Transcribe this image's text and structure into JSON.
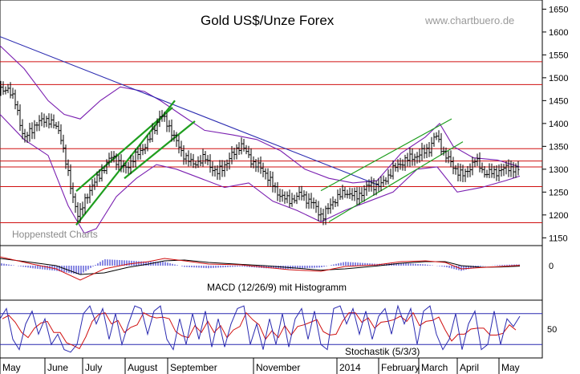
{
  "title": "Gold US$/Unze Forex",
  "watermark": "www.chartbuero.de",
  "source_label": "Hoppenstedt Charts",
  "colors": {
    "background": "#ffffff",
    "bars": "#000000",
    "bollinger": "#7a1fb0",
    "trendline": "#2a2ab0",
    "channel": "#1f9e1f",
    "horizontal": "#d01010",
    "macd_line": "#d01010",
    "signal_line": "#000000",
    "histogram": "#3a3ad0",
    "stoch_k": "#2a2ab0",
    "stoch_d": "#d01010",
    "grid": "#000000"
  },
  "chart_data": [
    {
      "type": "ohlc",
      "title": "Gold US$/Unze Forex",
      "ylim": [
        1133,
        1670
      ],
      "y_ticks": [
        "1650",
        "1600",
        "1550",
        "1500",
        "1450",
        "1400",
        "1350",
        "1300",
        "1250",
        "1200",
        "1150"
      ],
      "x_labels": [
        "May",
        "June",
        "July",
        "August",
        "September",
        "November",
        "2014",
        "February",
        "March",
        "April",
        "May"
      ],
      "horizontal_levels": [
        1535,
        1485,
        1345,
        1318,
        1305,
        1262,
        1183
      ],
      "trendline": {
        "x": [
          0,
          472
        ],
        "y": [
          1590,
          1265
        ]
      },
      "channels": [
        {
          "x": [
            95,
            215
          ],
          "y": [
            1252,
            1435
          ]
        },
        {
          "x": [
            95,
            218
          ],
          "y": [
            1178,
            1450
          ]
        },
        {
          "x": [
            155,
            243
          ],
          "y": [
            1280,
            1405
          ]
        },
        {
          "x": [
            400,
            563
          ],
          "y": [
            1253,
            1410
          ]
        },
        {
          "x": [
            410,
            577
          ],
          "y": [
            1185,
            1360
          ]
        }
      ],
      "close_series": [
        {
          "x": 0,
          "y": 1470
        },
        {
          "x": 10,
          "y": 1478
        },
        {
          "x": 20,
          "y": 1440
        },
        {
          "x": 30,
          "y": 1365
        },
        {
          "x": 45,
          "y": 1400
        },
        {
          "x": 60,
          "y": 1410
        },
        {
          "x": 75,
          "y": 1380
        },
        {
          "x": 88,
          "y": 1260
        },
        {
          "x": 98,
          "y": 1195
        },
        {
          "x": 110,
          "y": 1250
        },
        {
          "x": 125,
          "y": 1290
        },
        {
          "x": 140,
          "y": 1330
        },
        {
          "x": 155,
          "y": 1300
        },
        {
          "x": 170,
          "y": 1330
        },
        {
          "x": 185,
          "y": 1360
        },
        {
          "x": 200,
          "y": 1420
        },
        {
          "x": 212,
          "y": 1390
        },
        {
          "x": 225,
          "y": 1340
        },
        {
          "x": 240,
          "y": 1310
        },
        {
          "x": 255,
          "y": 1325
        },
        {
          "x": 270,
          "y": 1290
        },
        {
          "x": 285,
          "y": 1320
        },
        {
          "x": 300,
          "y": 1355
        },
        {
          "x": 315,
          "y": 1315
        },
        {
          "x": 330,
          "y": 1295
        },
        {
          "x": 345,
          "y": 1250
        },
        {
          "x": 360,
          "y": 1230
        },
        {
          "x": 375,
          "y": 1245
        },
        {
          "x": 390,
          "y": 1225
        },
        {
          "x": 402,
          "y": 1195
        },
        {
          "x": 415,
          "y": 1230
        },
        {
          "x": 430,
          "y": 1250
        },
        {
          "x": 445,
          "y": 1240
        },
        {
          "x": 460,
          "y": 1265
        },
        {
          "x": 475,
          "y": 1265
        },
        {
          "x": 490,
          "y": 1300
        },
        {
          "x": 505,
          "y": 1320
        },
        {
          "x": 520,
          "y": 1330
        },
        {
          "x": 535,
          "y": 1345
        },
        {
          "x": 543,
          "y": 1375
        },
        {
          "x": 552,
          "y": 1340
        },
        {
          "x": 565,
          "y": 1305
        },
        {
          "x": 578,
          "y": 1285
        },
        {
          "x": 592,
          "y": 1320
        },
        {
          "x": 605,
          "y": 1290
        },
        {
          "x": 620,
          "y": 1295
        },
        {
          "x": 635,
          "y": 1305
        },
        {
          "x": 648,
          "y": 1295
        }
      ],
      "bollinger_upper": [
        {
          "x": 0,
          "y": 1570
        },
        {
          "x": 30,
          "y": 1520
        },
        {
          "x": 60,
          "y": 1450
        },
        {
          "x": 80,
          "y": 1420
        },
        {
          "x": 100,
          "y": 1410
        },
        {
          "x": 125,
          "y": 1450
        },
        {
          "x": 150,
          "y": 1480
        },
        {
          "x": 180,
          "y": 1470
        },
        {
          "x": 200,
          "y": 1450
        },
        {
          "x": 225,
          "y": 1420
        },
        {
          "x": 255,
          "y": 1385
        },
        {
          "x": 290,
          "y": 1375
        },
        {
          "x": 320,
          "y": 1365
        },
        {
          "x": 350,
          "y": 1340
        },
        {
          "x": 380,
          "y": 1300
        },
        {
          "x": 410,
          "y": 1280
        },
        {
          "x": 440,
          "y": 1270
        },
        {
          "x": 470,
          "y": 1275
        },
        {
          "x": 500,
          "y": 1335
        },
        {
          "x": 530,
          "y": 1370
        },
        {
          "x": 548,
          "y": 1400
        },
        {
          "x": 565,
          "y": 1350
        },
        {
          "x": 590,
          "y": 1325
        },
        {
          "x": 620,
          "y": 1320
        },
        {
          "x": 648,
          "y": 1305
        }
      ],
      "bollinger_lower": [
        {
          "x": 0,
          "y": 1420
        },
        {
          "x": 30,
          "y": 1365
        },
        {
          "x": 60,
          "y": 1330
        },
        {
          "x": 85,
          "y": 1220
        },
        {
          "x": 105,
          "y": 1160
        },
        {
          "x": 120,
          "y": 1170
        },
        {
          "x": 145,
          "y": 1240
        },
        {
          "x": 170,
          "y": 1280
        },
        {
          "x": 195,
          "y": 1310
        },
        {
          "x": 220,
          "y": 1300
        },
        {
          "x": 250,
          "y": 1280
        },
        {
          "x": 280,
          "y": 1260
        },
        {
          "x": 310,
          "y": 1270
        },
        {
          "x": 340,
          "y": 1230
        },
        {
          "x": 370,
          "y": 1210
        },
        {
          "x": 400,
          "y": 1185
        },
        {
          "x": 430,
          "y": 1210
        },
        {
          "x": 460,
          "y": 1230
        },
        {
          "x": 490,
          "y": 1250
        },
        {
          "x": 520,
          "y": 1300
        },
        {
          "x": 545,
          "y": 1305
        },
        {
          "x": 570,
          "y": 1250
        },
        {
          "x": 600,
          "y": 1260
        },
        {
          "x": 630,
          "y": 1275
        },
        {
          "x": 648,
          "y": 1285
        }
      ]
    },
    {
      "type": "line",
      "title": "MACD (12/26/9) mit Histogramm",
      "y_ticks": [
        "0"
      ],
      "ylim": [
        -1,
        1
      ],
      "macd": [
        {
          "x": 0,
          "y": 0.55
        },
        {
          "x": 40,
          "y": 0.1
        },
        {
          "x": 70,
          "y": -0.2
        },
        {
          "x": 100,
          "y": -0.9
        },
        {
          "x": 130,
          "y": -0.2
        },
        {
          "x": 160,
          "y": 0.1
        },
        {
          "x": 185,
          "y": 0.25
        },
        {
          "x": 205,
          "y": 0.45
        },
        {
          "x": 230,
          "y": 0.3
        },
        {
          "x": 260,
          "y": 0.1
        },
        {
          "x": 300,
          "y": 0.05
        },
        {
          "x": 330,
          "y": -0.1
        },
        {
          "x": 360,
          "y": -0.25
        },
        {
          "x": 400,
          "y": -0.35
        },
        {
          "x": 430,
          "y": -0.05
        },
        {
          "x": 470,
          "y": 0.05
        },
        {
          "x": 500,
          "y": 0.25
        },
        {
          "x": 530,
          "y": 0.3
        },
        {
          "x": 555,
          "y": 0.2
        },
        {
          "x": 575,
          "y": -0.2
        },
        {
          "x": 600,
          "y": -0.12
        },
        {
          "x": 625,
          "y": -0.05
        },
        {
          "x": 648,
          "y": 0.02
        }
      ],
      "signal": [
        {
          "x": 0,
          "y": 0.45
        },
        {
          "x": 40,
          "y": 0.2
        },
        {
          "x": 70,
          "y": 0.0
        },
        {
          "x": 100,
          "y": -0.55
        },
        {
          "x": 130,
          "y": -0.45
        },
        {
          "x": 160,
          "y": -0.1
        },
        {
          "x": 185,
          "y": 0.1
        },
        {
          "x": 205,
          "y": 0.3
        },
        {
          "x": 230,
          "y": 0.35
        },
        {
          "x": 260,
          "y": 0.2
        },
        {
          "x": 300,
          "y": 0.08
        },
        {
          "x": 330,
          "y": 0.0
        },
        {
          "x": 360,
          "y": -0.12
        },
        {
          "x": 400,
          "y": -0.28
        },
        {
          "x": 430,
          "y": -0.2
        },
        {
          "x": 470,
          "y": -0.02
        },
        {
          "x": 500,
          "y": 0.15
        },
        {
          "x": 530,
          "y": 0.25
        },
        {
          "x": 555,
          "y": 0.25
        },
        {
          "x": 575,
          "y": 0.0
        },
        {
          "x": 600,
          "y": -0.1
        },
        {
          "x": 625,
          "y": -0.08
        },
        {
          "x": 648,
          "y": -0.03
        }
      ]
    },
    {
      "type": "line",
      "title": "Stochastik (5/3/3)",
      "y_ticks": [
        "50"
      ],
      "ylim": [
        0,
        100
      ],
      "upper_band": 80,
      "lower_band": 20,
      "stoch_k": [
        {
          "x": 0,
          "y": 70
        },
        {
          "x": 8,
          "y": 90
        },
        {
          "x": 16,
          "y": 30
        },
        {
          "x": 24,
          "y": 10
        },
        {
          "x": 32,
          "y": 60
        },
        {
          "x": 40,
          "y": 85
        },
        {
          "x": 48,
          "y": 40
        },
        {
          "x": 56,
          "y": 70
        },
        {
          "x": 64,
          "y": 20
        },
        {
          "x": 72,
          "y": 40
        },
        {
          "x": 80,
          "y": 10
        },
        {
          "x": 88,
          "y": 5
        },
        {
          "x": 96,
          "y": 20
        },
        {
          "x": 104,
          "y": 80
        },
        {
          "x": 112,
          "y": 95
        },
        {
          "x": 120,
          "y": 60
        },
        {
          "x": 128,
          "y": 90
        },
        {
          "x": 136,
          "y": 30
        },
        {
          "x": 144,
          "y": 80
        },
        {
          "x": 152,
          "y": 20
        },
        {
          "x": 160,
          "y": 60
        },
        {
          "x": 168,
          "y": 95
        },
        {
          "x": 176,
          "y": 90
        },
        {
          "x": 184,
          "y": 40
        },
        {
          "x": 192,
          "y": 85
        },
        {
          "x": 200,
          "y": 95
        },
        {
          "x": 208,
          "y": 30
        },
        {
          "x": 216,
          "y": 10
        },
        {
          "x": 224,
          "y": 70
        },
        {
          "x": 232,
          "y": 20
        },
        {
          "x": 240,
          "y": 80
        },
        {
          "x": 248,
          "y": 30
        },
        {
          "x": 256,
          "y": 85
        },
        {
          "x": 264,
          "y": 15
        },
        {
          "x": 272,
          "y": 70
        },
        {
          "x": 280,
          "y": 15
        },
        {
          "x": 288,
          "y": 60
        },
        {
          "x": 296,
          "y": 90
        },
        {
          "x": 304,
          "y": 95
        },
        {
          "x": 312,
          "y": 20
        },
        {
          "x": 320,
          "y": 60
        },
        {
          "x": 328,
          "y": 10
        },
        {
          "x": 336,
          "y": 70
        },
        {
          "x": 344,
          "y": 20
        },
        {
          "x": 352,
          "y": 80
        },
        {
          "x": 360,
          "y": 15
        },
        {
          "x": 368,
          "y": 70
        },
        {
          "x": 376,
          "y": 90
        },
        {
          "x": 384,
          "y": 30
        },
        {
          "x": 392,
          "y": 85
        },
        {
          "x": 400,
          "y": 20
        },
        {
          "x": 408,
          "y": 10
        },
        {
          "x": 416,
          "y": 90
        },
        {
          "x": 424,
          "y": 95
        },
        {
          "x": 432,
          "y": 60
        },
        {
          "x": 440,
          "y": 90
        },
        {
          "x": 448,
          "y": 40
        },
        {
          "x": 456,
          "y": 85
        },
        {
          "x": 464,
          "y": 30
        },
        {
          "x": 472,
          "y": 75
        },
        {
          "x": 480,
          "y": 90
        },
        {
          "x": 488,
          "y": 40
        },
        {
          "x": 496,
          "y": 95
        },
        {
          "x": 504,
          "y": 60
        },
        {
          "x": 512,
          "y": 90
        },
        {
          "x": 520,
          "y": 20
        },
        {
          "x": 528,
          "y": 85
        },
        {
          "x": 536,
          "y": 95
        },
        {
          "x": 544,
          "y": 40
        },
        {
          "x": 552,
          "y": 10
        },
        {
          "x": 560,
          "y": 30
        },
        {
          "x": 568,
          "y": 80
        },
        {
          "x": 576,
          "y": 10
        },
        {
          "x": 584,
          "y": 60
        },
        {
          "x": 592,
          "y": 85
        },
        {
          "x": 600,
          "y": 10
        },
        {
          "x": 608,
          "y": 20
        },
        {
          "x": 616,
          "y": 85
        },
        {
          "x": 624,
          "y": 20
        },
        {
          "x": 632,
          "y": 70
        },
        {
          "x": 640,
          "y": 55
        },
        {
          "x": 648,
          "y": 75
        }
      ]
    }
  ]
}
